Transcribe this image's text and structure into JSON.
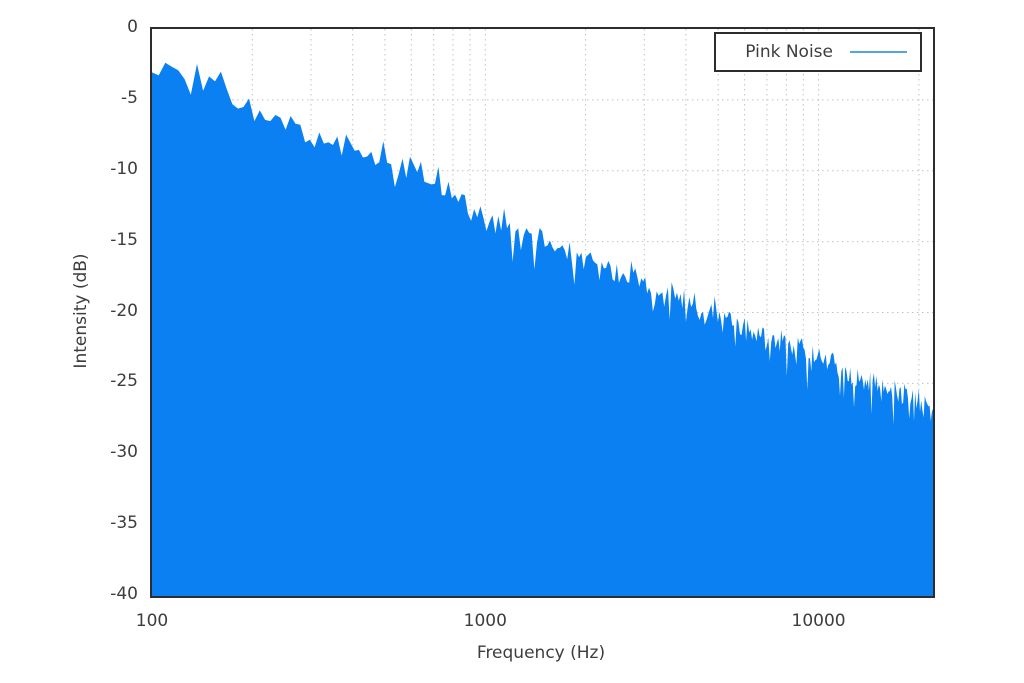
{
  "figure": {
    "background": "#ffffff",
    "border_color": "#2d2d2d",
    "text_color": "#3d3d3d",
    "grid_color": "#c2c2c2"
  },
  "chart_data": {
    "type": "area",
    "title": "",
    "xlabel": "Frequency (Hz)",
    "ylabel": "Intensity (dB)",
    "x_scale": "log",
    "xlim": [
      100,
      22050
    ],
    "ylim": [
      -40,
      0
    ],
    "grid": true,
    "x_ticks": [
      {
        "value": 100,
        "label": "100"
      },
      {
        "value": 1000,
        "label": "1000"
      },
      {
        "value": 10000,
        "label": "10000"
      }
    ],
    "x_minor_gridlines": [
      200,
      300,
      400,
      500,
      600,
      700,
      800,
      900,
      1000,
      2000,
      3000,
      4000,
      5000,
      6000,
      7000,
      8000,
      9000,
      10000,
      20000
    ],
    "y_ticks": [
      {
        "value": 0,
        "label": "0"
      },
      {
        "value": -5,
        "label": "-5"
      },
      {
        "value": -10,
        "label": "-10"
      },
      {
        "value": -15,
        "label": "-15"
      },
      {
        "value": -20,
        "label": "-20"
      },
      {
        "value": -25,
        "label": "-25"
      },
      {
        "value": -30,
        "label": "-30"
      },
      {
        "value": -35,
        "label": "-35"
      },
      {
        "value": -40,
        "label": "-40"
      }
    ],
    "y_gridlines": [
      -5,
      -10,
      -15,
      -20,
      -25,
      -30,
      -35
    ],
    "legend": {
      "position": "top-right",
      "entries": [
        {
          "label": "Pink Noise",
          "line_color": "#56a4e0"
        }
      ]
    },
    "series": [
      {
        "name": "Pink Noise",
        "fill_color": "#0a80f2",
        "slope_db_per_decade": -10,
        "envelope_points": [
          [
            100,
            -3.3
          ],
          [
            108,
            -2.9
          ],
          [
            118,
            -3.3
          ],
          [
            126,
            -3.0
          ],
          [
            131,
            -3.9
          ],
          [
            135,
            -2.8
          ],
          [
            142,
            -3.4
          ],
          [
            152,
            -4.3
          ],
          [
            165,
            -4.2
          ],
          [
            180,
            -4.8
          ],
          [
            200,
            -5.6
          ],
          [
            250,
            -6.2
          ],
          [
            300,
            -6.9
          ],
          [
            400,
            -7.9
          ],
          [
            500,
            -8.7
          ],
          [
            630,
            -9.8
          ],
          [
            800,
            -11.3
          ],
          [
            1000,
            -12.9
          ],
          [
            1300,
            -14.0
          ],
          [
            1700,
            -15.2
          ],
          [
            2200,
            -16.2
          ],
          [
            2800,
            -17.4
          ],
          [
            3600,
            -18.5
          ],
          [
            4700,
            -19.6
          ],
          [
            6000,
            -20.7
          ],
          [
            7500,
            -21.7
          ],
          [
            9400,
            -22.8
          ],
          [
            12000,
            -23.9
          ],
          [
            15000,
            -24.7
          ],
          [
            19000,
            -25.8
          ],
          [
            22050,
            -26.4
          ]
        ],
        "noise_db_peak": 1.8,
        "noise_seed": 987654321
      }
    ]
  }
}
